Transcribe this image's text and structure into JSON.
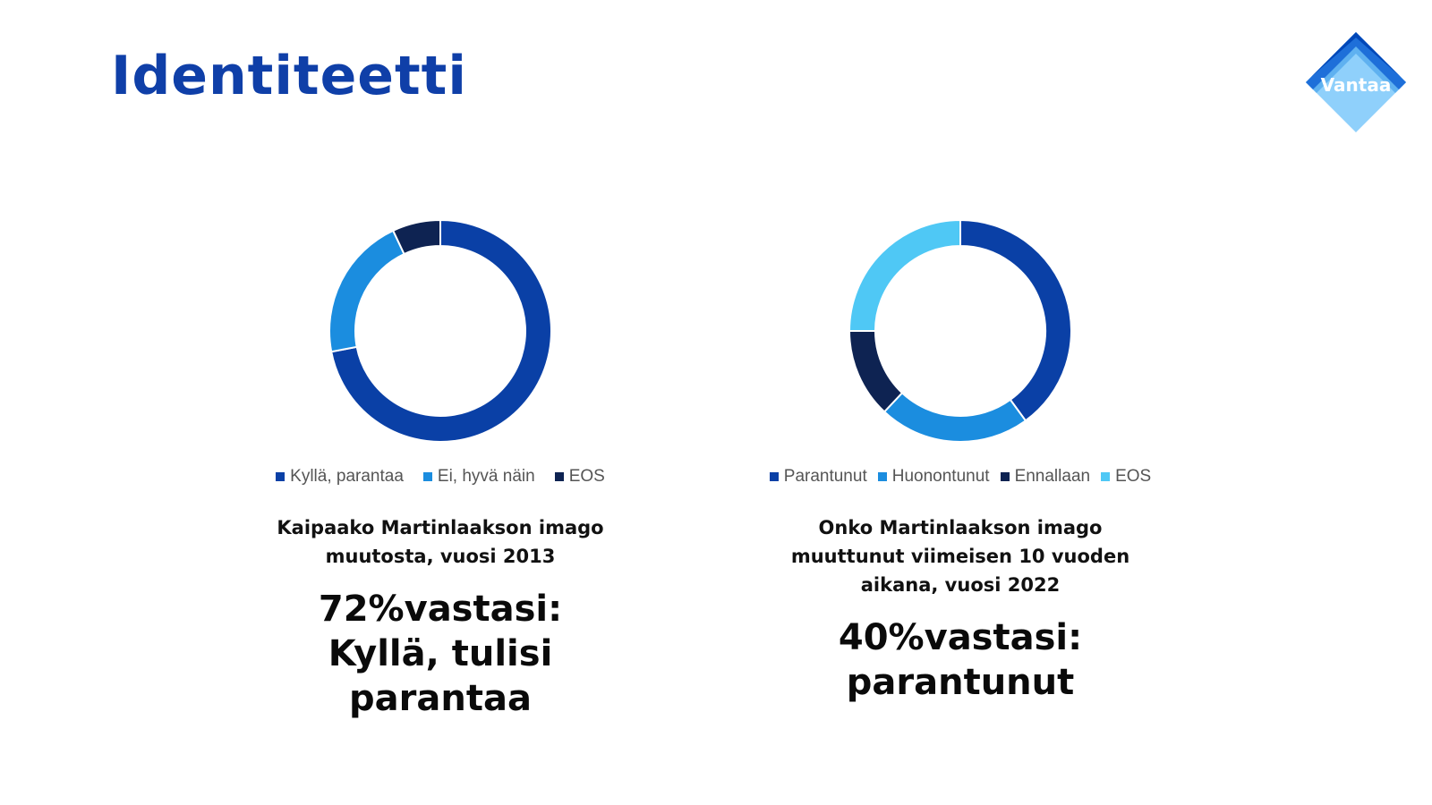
{
  "title": "Identiteetti",
  "logo": {
    "text": "Vantaa",
    "colors": [
      "#0047b8",
      "#1e6fd9",
      "#5fb1f0",
      "#8fd0fb"
    ]
  },
  "chart_data": [
    {
      "type": "pie",
      "donut": true,
      "categories": [
        "Kyllä, parantaa",
        "Ei, hyvä näin",
        "EOS"
      ],
      "values": [
        72,
        21,
        7
      ],
      "colors": [
        "#0a40a6",
        "#1b8ddf",
        "#0e2352"
      ],
      "legend": "bottom",
      "question": "Kaipaako Martinlaakson imago muutosta, vuosi 2013",
      "answer": "72%vastasi: Kyllä, tulisi parantaa"
    },
    {
      "type": "pie",
      "donut": true,
      "categories": [
        "Parantunut",
        "Huonontunut",
        "Ennallaan",
        "EOS"
      ],
      "values": [
        40,
        22,
        13,
        25
      ],
      "colors": [
        "#0a40a6",
        "#1b8ddf",
        "#0e2352",
        "#4fc8f5"
      ],
      "legend": "bottom",
      "question": "Onko Martinlaakson imago muuttunut viimeisen 10 vuoden aikana, vuosi 2022",
      "answer": "40%vastasi: parantunut"
    }
  ]
}
